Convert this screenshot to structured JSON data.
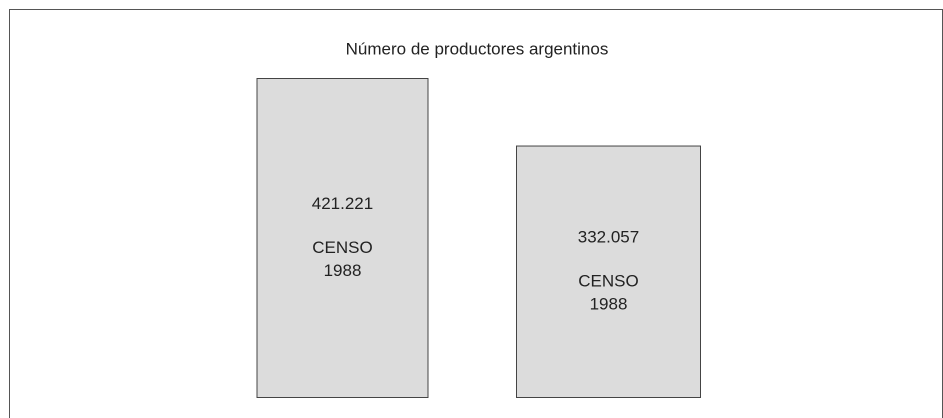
{
  "chart_data": {
    "type": "bar",
    "title": "Número de productores argentinos",
    "categories": [
      [
        "CENSO",
        "1988"
      ],
      [
        "CENSO",
        "1988"
      ]
    ],
    "values": [
      421221,
      332057
    ],
    "value_labels": [
      "421.221",
      "332.057"
    ],
    "color": "#dcdcdc"
  }
}
